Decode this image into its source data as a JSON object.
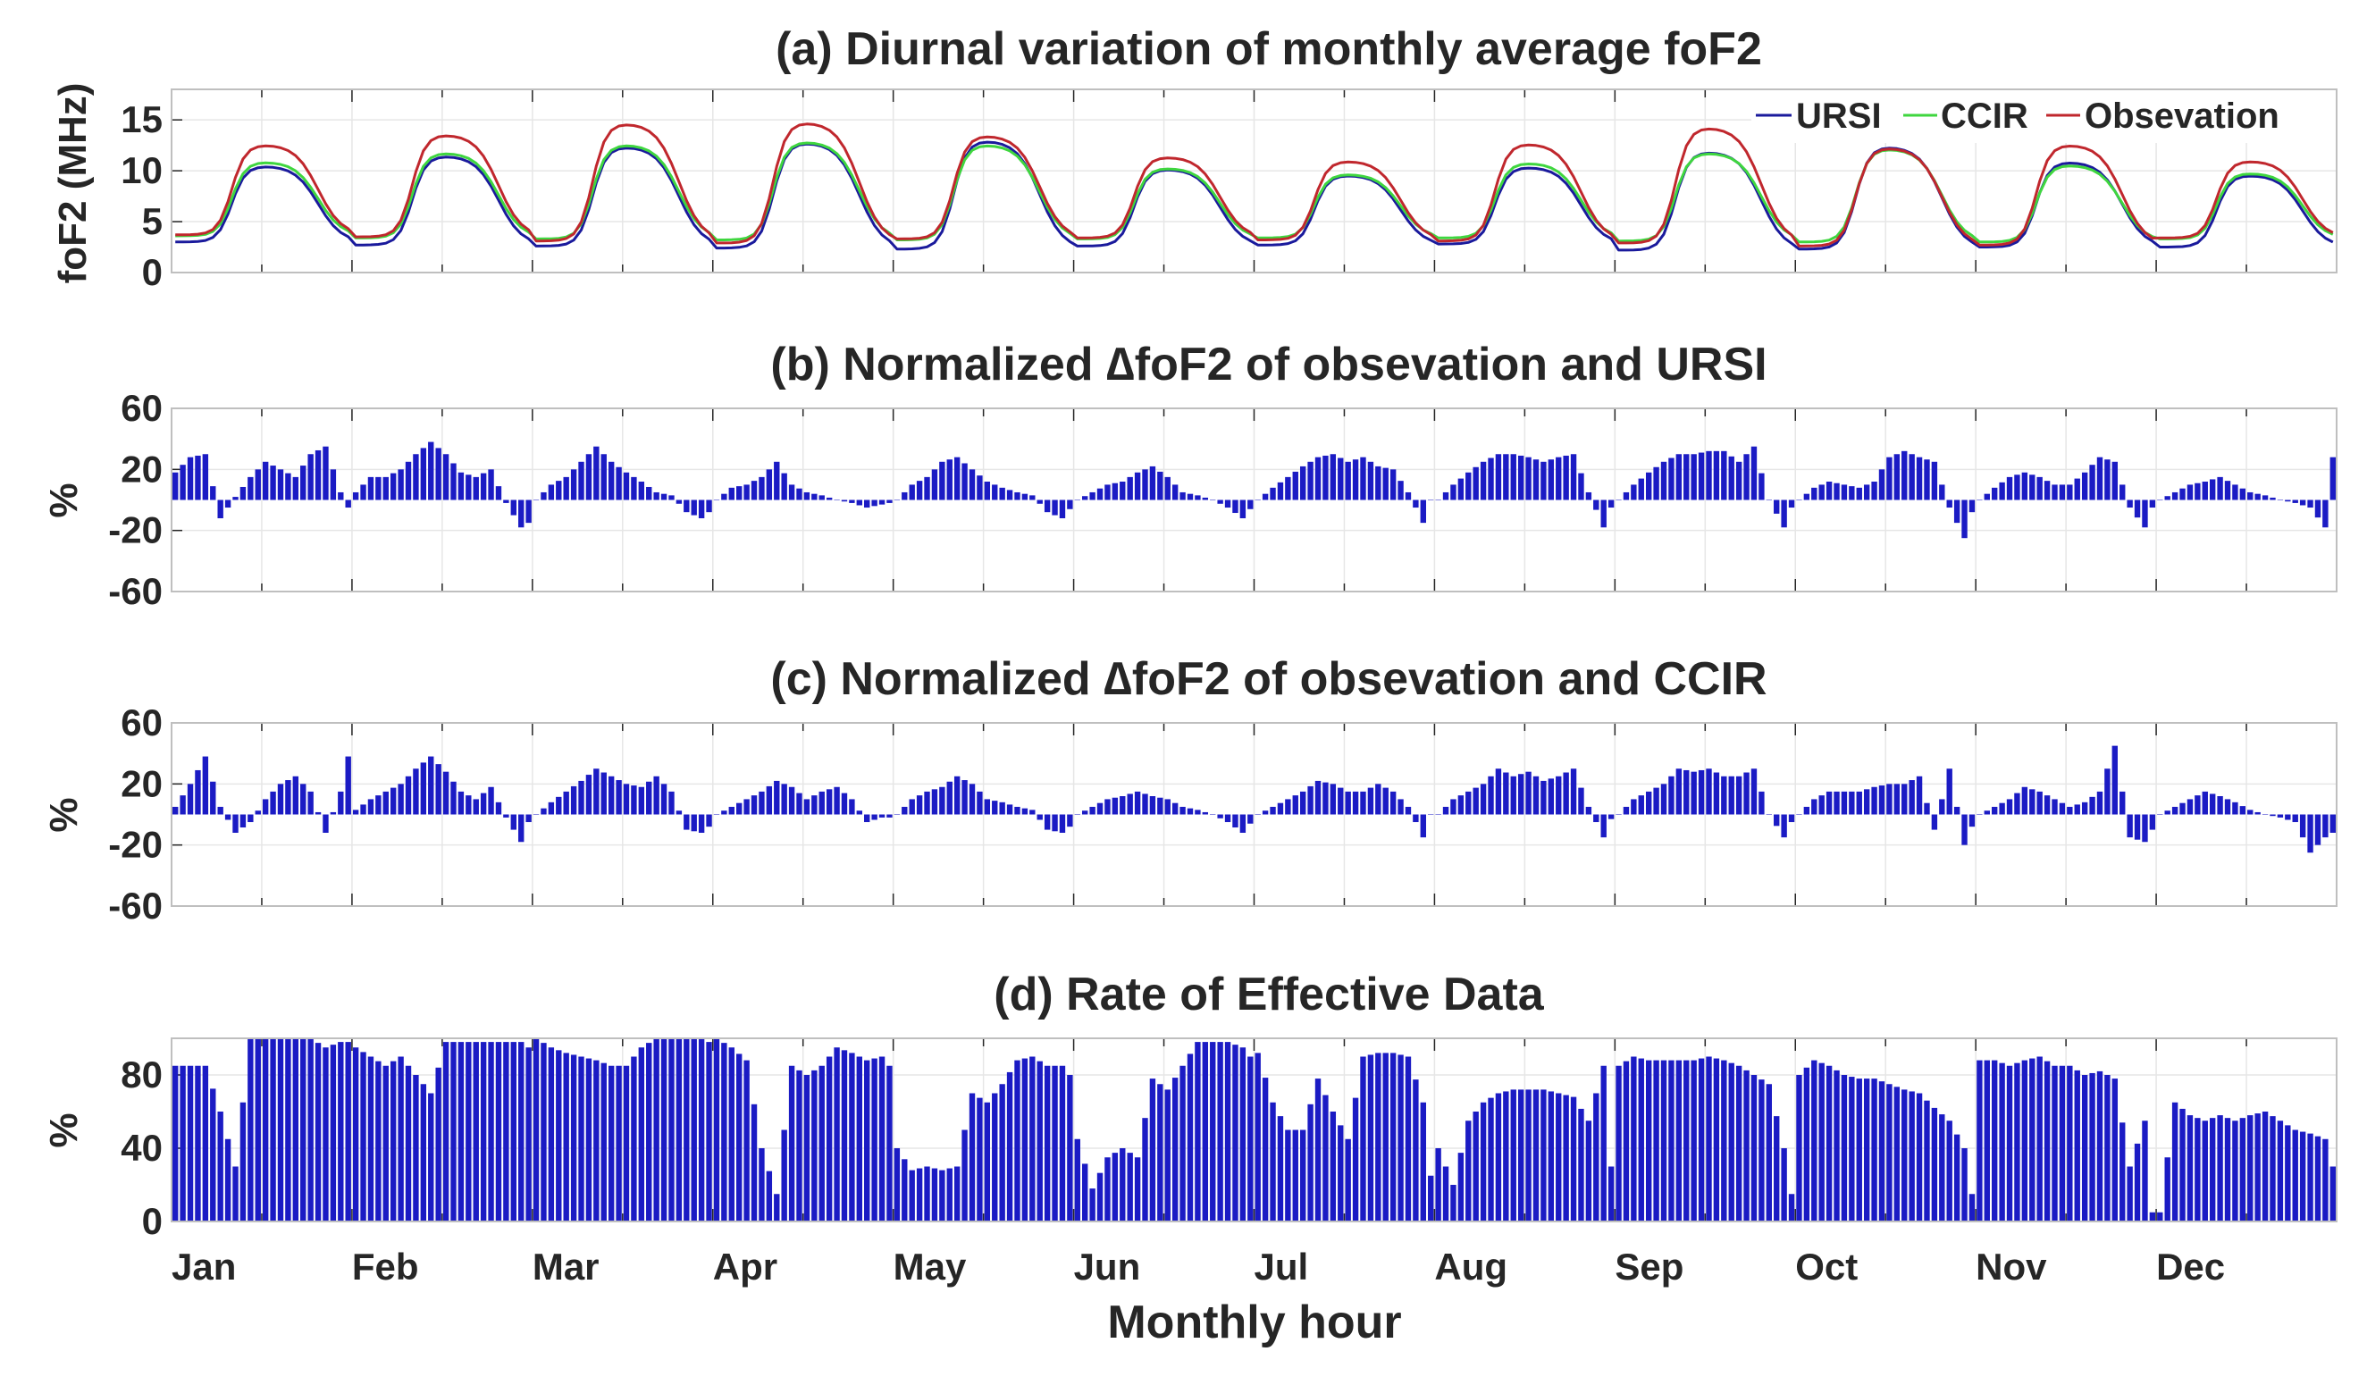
{
  "chart_data": [
    {
      "id": "a",
      "type": "line",
      "title": "(a) Diurnal variation of monthly average foF2",
      "ylabel": "foF2 (MHz)",
      "ylim": [
        0,
        18
      ],
      "yticks": [
        "0",
        "5",
        "10",
        "15"
      ],
      "x_unit": "monthly hour (24 points per month)",
      "series": [
        {
          "name": "URSI",
          "color": "#1a1a9c",
          "min": [
            3.0,
            2.7,
            2.6,
            2.4,
            2.3,
            2.6,
            2.7,
            2.8,
            2.2,
            2.3,
            2.5,
            2.5
          ],
          "peak": [
            10.5,
            11.5,
            12.4,
            12.8,
            13.0,
            10.2,
            9.6,
            10.4,
            11.9,
            12.4,
            10.9,
            9.6
          ]
        },
        {
          "name": "CCIR",
          "color": "#3fd63f",
          "min": [
            3.6,
            3.4,
            3.3,
            3.2,
            3.2,
            3.3,
            3.4,
            3.4,
            3.1,
            3.0,
            3.0,
            3.3
          ],
          "peak": [
            10.9,
            11.8,
            12.6,
            12.9,
            12.6,
            10.3,
            9.7,
            10.8,
            11.8,
            12.2,
            10.6,
            9.8
          ]
        },
        {
          "name": "Obsevation",
          "color": "#c0272d",
          "min": [
            3.7,
            3.5,
            3.1,
            2.9,
            3.3,
            3.4,
            3.2,
            3.1,
            2.9,
            2.6,
            2.7,
            3.4
          ],
          "peak": [
            12.6,
            13.6,
            14.7,
            14.8,
            13.5,
            11.4,
            11.0,
            12.7,
            14.3,
            12.3,
            12.6,
            11.0
          ]
        }
      ]
    },
    {
      "id": "b",
      "type": "bar",
      "title": "(b) Normalized ∆foF2 of obsevation and URSI",
      "ylabel": "%",
      "ylim": [
        -60,
        60
      ],
      "yticks": [
        "60",
        "20",
        "-20",
        "-60"
      ],
      "bar_color": "#1b1bc4",
      "monthly_profile": {
        "hours": [
          0,
          2,
          4,
          6,
          8,
          10,
          12,
          14,
          16,
          18,
          20,
          22,
          23
        ],
        "values": [
          [
            18,
            28,
            30,
            -12,
            2,
            15,
            25,
            20,
            15,
            30,
            35,
            5,
            -5
          ],
          [
            5,
            15,
            15,
            20,
            30,
            38,
            30,
            18,
            15,
            20,
            -2,
            -18,
            -15
          ],
          [
            0,
            10,
            15,
            25,
            35,
            25,
            18,
            12,
            5,
            3,
            -8,
            -12,
            -8
          ],
          [
            0,
            8,
            10,
            15,
            25,
            10,
            5,
            3,
            0,
            -2,
            -5,
            -3,
            -2
          ],
          [
            0,
            10,
            15,
            25,
            28,
            20,
            12,
            8,
            5,
            3,
            -8,
            -12,
            -6
          ],
          [
            0,
            5,
            10,
            12,
            18,
            22,
            15,
            5,
            3,
            0,
            -5,
            -12,
            -6
          ],
          [
            0,
            8,
            15,
            22,
            28,
            30,
            25,
            28,
            22,
            20,
            5,
            -15,
            0
          ],
          [
            0,
            10,
            18,
            25,
            30,
            30,
            28,
            25,
            28,
            30,
            5,
            -18,
            -5
          ],
          [
            0,
            10,
            18,
            25,
            30,
            30,
            32,
            32,
            25,
            35,
            0,
            -18,
            -5
          ],
          [
            0,
            8,
            12,
            10,
            8,
            12,
            28,
            32,
            28,
            25,
            -5,
            -25,
            -8
          ],
          [
            0,
            8,
            15,
            18,
            15,
            10,
            10,
            18,
            28,
            25,
            -5,
            -18,
            -5
          ],
          [
            0,
            5,
            10,
            12,
            15,
            10,
            5,
            3,
            0,
            -2,
            -5,
            -18,
            28
          ]
        ]
      }
    },
    {
      "id": "c",
      "type": "bar",
      "title": "(c) Normalized ∆foF2 of obsevation and CCIR",
      "ylabel": "%",
      "ylim": [
        -60,
        60
      ],
      "yticks": [
        "60",
        "20",
        "-20",
        "-60"
      ],
      "bar_color": "#1b1bc4",
      "monthly_profile": {
        "hours": [
          0,
          2,
          4,
          6,
          8,
          10,
          12,
          14,
          16,
          18,
          20,
          22,
          23
        ],
        "values": [
          [
            5,
            20,
            38,
            5,
            -12,
            -5,
            10,
            20,
            25,
            15,
            -12,
            15,
            38
          ],
          [
            3,
            10,
            15,
            20,
            30,
            38,
            28,
            15,
            10,
            18,
            -2,
            -18,
            -5
          ],
          [
            0,
            8,
            15,
            22,
            30,
            25,
            20,
            18,
            25,
            15,
            -10,
            -12,
            -8
          ],
          [
            0,
            5,
            10,
            15,
            22,
            18,
            10,
            15,
            18,
            10,
            -5,
            -2,
            -2
          ],
          [
            0,
            10,
            15,
            18,
            25,
            20,
            10,
            8,
            5,
            3,
            -10,
            -12,
            -8
          ],
          [
            0,
            5,
            10,
            12,
            15,
            12,
            10,
            5,
            3,
            0,
            -5,
            -12,
            -6
          ],
          [
            0,
            5,
            10,
            15,
            22,
            20,
            15,
            15,
            20,
            15,
            5,
            -15,
            0
          ],
          [
            0,
            10,
            15,
            20,
            30,
            25,
            28,
            22,
            25,
            30,
            5,
            -15,
            -3
          ],
          [
            0,
            10,
            15,
            20,
            30,
            28,
            30,
            25,
            25,
            30,
            0,
            -15,
            -5
          ],
          [
            0,
            10,
            15,
            15,
            15,
            18,
            20,
            20,
            25,
            -10,
            30,
            -20,
            -8
          ],
          [
            0,
            5,
            10,
            18,
            15,
            10,
            5,
            8,
            15,
            45,
            -15,
            -18,
            -10
          ],
          [
            0,
            5,
            10,
            15,
            12,
            8,
            3,
            0,
            -2,
            -5,
            -25,
            -15,
            -12
          ]
        ]
      }
    },
    {
      "id": "d",
      "type": "bar",
      "title": "(d) Rate of Effective Data",
      "ylabel": "%",
      "xlabel": "Monthly hour",
      "ylim": [
        0,
        100
      ],
      "yticks": [
        "0",
        "40",
        "80"
      ],
      "bar_color": "#1b1bc4",
      "monthly_profile": {
        "hours": [
          0,
          2,
          4,
          6,
          8,
          10,
          12,
          14,
          16,
          18,
          20,
          22,
          23
        ],
        "values": [
          [
            85,
            85,
            85,
            60,
            30,
            100,
            100,
            100,
            100,
            100,
            95,
            98,
            98
          ],
          [
            95,
            90,
            85,
            90,
            80,
            70,
            98,
            98,
            98,
            98,
            98,
            98,
            95
          ],
          [
            100,
            95,
            92,
            90,
            88,
            85,
            85,
            95,
            100,
            100,
            100,
            100,
            98
          ],
          [
            100,
            95,
            88,
            40,
            15,
            85,
            80,
            85,
            95,
            92,
            88,
            90,
            85
          ],
          [
            40,
            28,
            30,
            28,
            30,
            70,
            65,
            75,
            88,
            90,
            85,
            85,
            80
          ],
          [
            45,
            18,
            35,
            40,
            35,
            78,
            72,
            85,
            98,
            98,
            98,
            95,
            90
          ],
          [
            92,
            65,
            50,
            50,
            78,
            60,
            45,
            90,
            92,
            92,
            90,
            65,
            25
          ],
          [
            40,
            20,
            55,
            65,
            70,
            72,
            72,
            72,
            70,
            68,
            55,
            85,
            30
          ],
          [
            85,
            90,
            88,
            88,
            88,
            88,
            90,
            88,
            85,
            80,
            75,
            40,
            15
          ],
          [
            80,
            88,
            85,
            80,
            78,
            78,
            75,
            72,
            70,
            62,
            55,
            40,
            15
          ],
          [
            88,
            88,
            85,
            88,
            90,
            85,
            85,
            80,
            82,
            78,
            30,
            55,
            5
          ],
          [
            5,
            65,
            58,
            55,
            58,
            55,
            58,
            60,
            55,
            50,
            48,
            45,
            30
          ]
        ]
      }
    }
  ],
  "months": [
    "Jan",
    "Feb",
    "Mar",
    "Apr",
    "May",
    "Jun",
    "Jul",
    "Aug",
    "Sep",
    "Oct",
    "Nov",
    "Dec"
  ],
  "shared_xlabel": "Monthly hour",
  "colors": {
    "axis": "#262626",
    "grid": "#e6e6e6",
    "frame": "#bfbfbf"
  }
}
